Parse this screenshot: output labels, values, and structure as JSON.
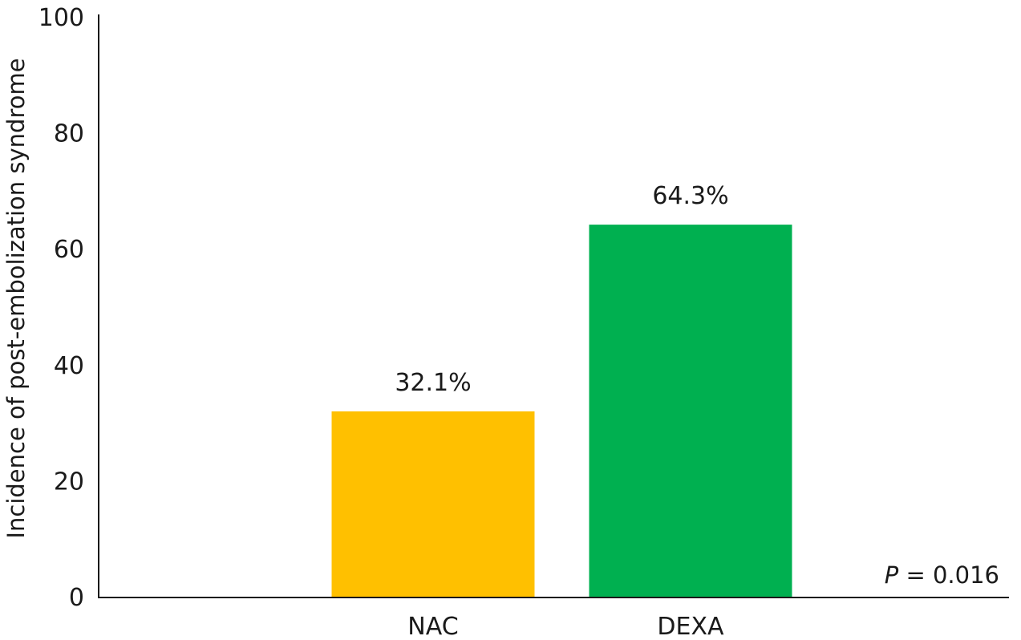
{
  "chart_data": {
    "type": "bar",
    "title": "",
    "xlabel": "",
    "ylabel": "Incidence of post-embolization syndrome",
    "ylim": [
      0,
      100
    ],
    "yticks": [
      0,
      20,
      40,
      60,
      80,
      100
    ],
    "grid": false,
    "categories": [
      "NAC",
      "DEXA"
    ],
    "values": [
      32.1,
      64.3
    ],
    "data_labels": [
      "32.1%",
      "64.3%"
    ],
    "colors": [
      "#FFC000",
      "#00B050"
    ],
    "annotation": {
      "p_symbol": "P",
      "p_text": " = 0.016"
    }
  }
}
